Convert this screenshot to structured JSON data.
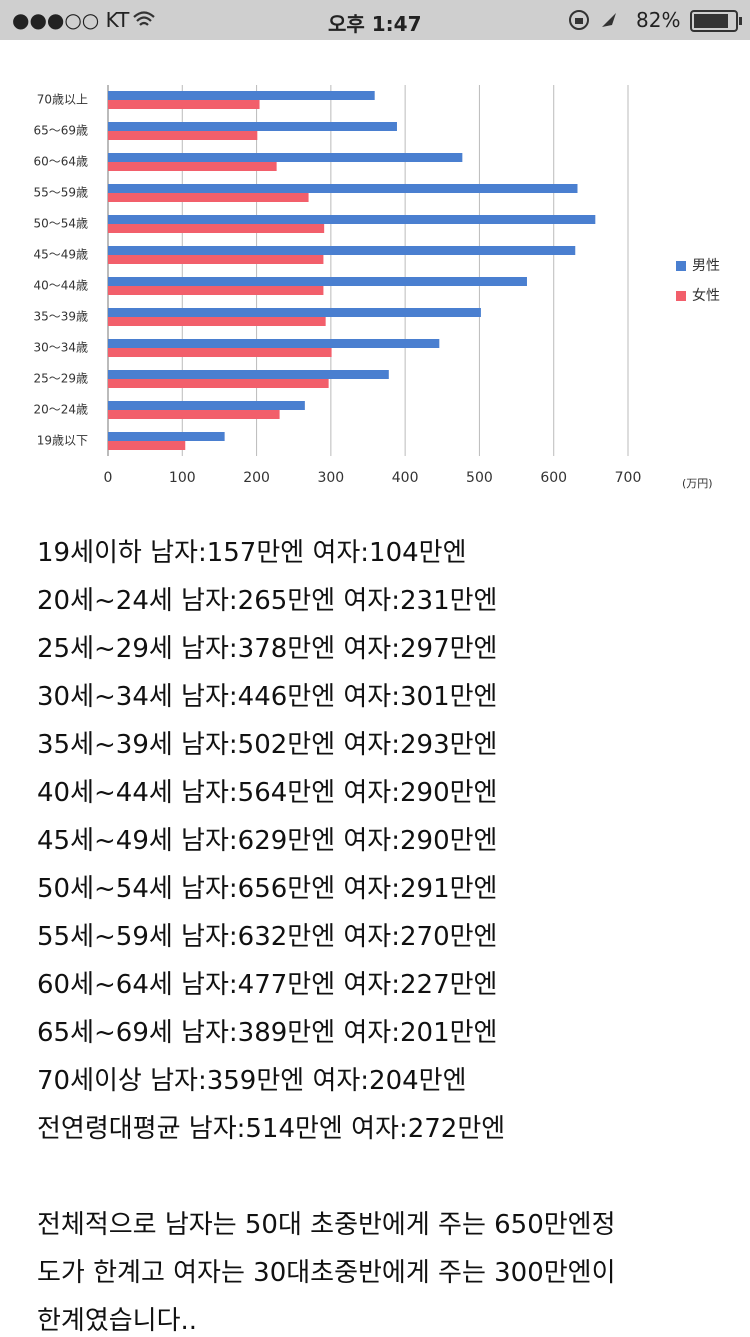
{
  "status_bar": {
    "carrier": "●●●○○ KT",
    "time": "오후 1:47",
    "battery": "82%"
  },
  "chart_data": {
    "type": "hbar",
    "categories": [
      "70歳以上",
      "65～69歳",
      "60～64歳",
      "55～59歳",
      "50～54歳",
      "45～49歳",
      "40～44歳",
      "35～39歳",
      "30～34歳",
      "25～29歳",
      "20～24歳",
      "19歳以下"
    ],
    "series": [
      {
        "name": "男性",
        "color": "#4a7fd0",
        "values": [
          359,
          389,
          477,
          632,
          656,
          629,
          564,
          502,
          446,
          378,
          265,
          157
        ]
      },
      {
        "name": "女性",
        "color": "#f25f6b",
        "values": [
          204,
          201,
          227,
          270,
          291,
          290,
          290,
          293,
          301,
          297,
          231,
          104
        ]
      }
    ],
    "xlim": [
      0,
      700
    ],
    "xticks": [
      0,
      100,
      200,
      300,
      400,
      500,
      600,
      700
    ],
    "x_unit": "(万円)",
    "grid": true,
    "legend": "right"
  },
  "text_lines": [
    "19세이하 남자:157만엔 여자:104만엔",
    "20세~24세 남자:265만엔 여자:231만엔",
    "25세~29세 남자:378만엔 여자:297만엔",
    "30세~34세 남자:446만엔 여자:301만엔",
    "35세~39세 남자:502만엔 여자:293만엔",
    "40세~44세 남자:564만엔 여자:290만엔",
    "45세~49세 남자:629만엔 여자:290만엔",
    "50세~54세 남자:656만엔 여자:291만엔",
    "55세~59세 남자:632만엔 여자:270만엔",
    "60세~64세 남자:477만엔 여자:227만엔",
    "65세~69세 남자:389만엔 여자:201만엔",
    "70세이상 남자:359만엔 여자:204만엔",
    "전연령대평균 남자:514만엔 여자:272만엔"
  ],
  "paragraph_lines": [
    "전체적으로 남자는 50대 초중반에게 주는 650만엔정",
    "도가 한계고 여자는 30대초중반에게 주는 300만엔이",
    "한계였습니다.."
  ]
}
